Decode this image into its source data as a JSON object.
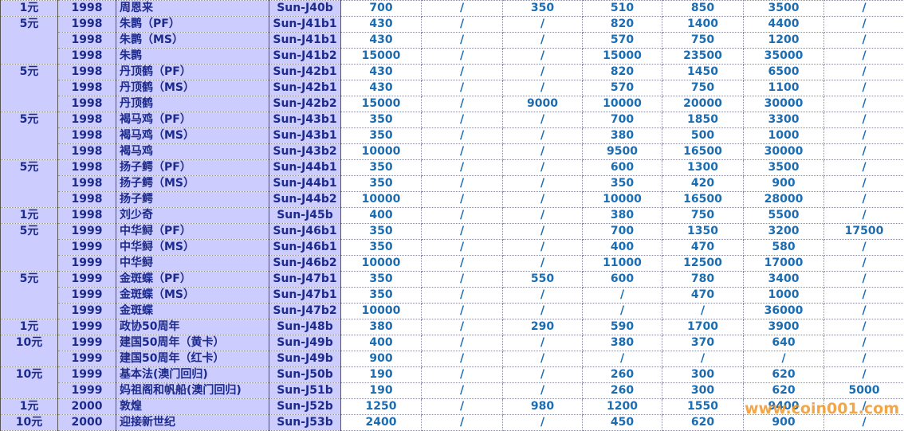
{
  "table": {
    "rows": [
      {
        "denomination": "1元",
        "year": "1998",
        "name": "周恩来",
        "code": "Sun-J40b",
        "prices": [
          700,
          "/",
          350,
          510,
          850,
          3500,
          "/"
        ]
      },
      {
        "denomination": "5元",
        "year": "1998",
        "name": "朱鹮（PF）",
        "code": "Sun-J41b1",
        "prices": [
          430,
          "/",
          "/",
          820,
          1400,
          4400,
          "/"
        ]
      },
      {
        "year": "1998",
        "name": "朱鹮（MS）",
        "code": "Sun-J41b1",
        "prices": [
          430,
          "/",
          "/",
          570,
          750,
          1200,
          "/"
        ]
      },
      {
        "year": "1998",
        "name": "朱鹮",
        "code": "Sun-J41b2",
        "prices": [
          15000,
          "/",
          "/",
          15000,
          23500,
          35000,
          "/"
        ]
      },
      {
        "denomination": "5元",
        "year": "1998",
        "name": "丹顶鹤（PF）",
        "code": "Sun-J42b1",
        "prices": [
          430,
          "/",
          "/",
          820,
          1450,
          6500,
          "/"
        ]
      },
      {
        "year": "1998",
        "name": "丹顶鹤（MS）",
        "code": "Sun-J42b1",
        "prices": [
          430,
          "/",
          "/",
          570,
          750,
          1100,
          "/"
        ]
      },
      {
        "year": "1998",
        "name": "丹顶鹤",
        "code": "Sun-J42b2",
        "prices": [
          15000,
          "/",
          9000,
          10000,
          20000,
          30000,
          "/"
        ]
      },
      {
        "denomination": "5元",
        "year": "1998",
        "name": "褐马鸡（PF）",
        "code": "Sun-J43b1",
        "prices": [
          350,
          "/",
          "/",
          700,
          1850,
          3300,
          "/"
        ]
      },
      {
        "year": "1998",
        "name": "褐马鸡（MS）",
        "code": "Sun-J43b1",
        "prices": [
          350,
          "/",
          "/",
          380,
          500,
          1000,
          "/"
        ]
      },
      {
        "year": "1998",
        "name": "褐马鸡",
        "code": "Sun-J43b2",
        "prices": [
          10000,
          "/",
          "/",
          9500,
          16500,
          30000,
          "/"
        ]
      },
      {
        "denomination": "5元",
        "year": "1998",
        "name": "扬子鳄（PF）",
        "code": "Sun-J44b1",
        "prices": [
          350,
          "/",
          "/",
          600,
          1300,
          3500,
          "/"
        ]
      },
      {
        "year": "1998",
        "name": "扬子鳄（MS）",
        "code": "Sun-J44b1",
        "prices": [
          350,
          "/",
          "/",
          350,
          420,
          900,
          "/"
        ]
      },
      {
        "year": "1998",
        "name": "扬子鳄",
        "code": "Sun-J44b2",
        "prices": [
          10000,
          "/",
          "/",
          10000,
          16500,
          28000,
          "/"
        ]
      },
      {
        "denomination": "1元",
        "year": "1998",
        "name": "刘少奇",
        "code": "Sun-J45b",
        "prices": [
          400,
          "/",
          "/",
          380,
          750,
          5500,
          "/"
        ]
      },
      {
        "denomination": "5元",
        "year": "1999",
        "name": "中华鲟（PF）",
        "code": "Sun-J46b1",
        "prices": [
          350,
          "/",
          "/",
          700,
          1350,
          3200,
          17500
        ]
      },
      {
        "year": "1999",
        "name": "中华鲟（MS）",
        "code": "Sun-J46b1",
        "prices": [
          350,
          "/",
          "/",
          400,
          470,
          580,
          "/"
        ]
      },
      {
        "year": "1999",
        "name": "中华鲟",
        "code": "Sun-J46b2",
        "prices": [
          10000,
          "/",
          "/",
          11000,
          12500,
          17000,
          "/"
        ]
      },
      {
        "denomination": "5元",
        "year": "1999",
        "name": "金斑蝶（PF）",
        "code": "Sun-J47b1",
        "prices": [
          350,
          "/",
          550,
          600,
          780,
          3400,
          "/"
        ]
      },
      {
        "year": "1999",
        "name": "金斑蝶（MS）",
        "code": "Sun-J47b1",
        "prices": [
          350,
          "/",
          "/",
          "/",
          470,
          1000,
          "/"
        ]
      },
      {
        "year": "1999",
        "name": "金斑蝶",
        "code": "Sun-J47b2",
        "prices": [
          10000,
          "/",
          "/",
          "/",
          "/",
          36000,
          "/"
        ]
      },
      {
        "denomination": "1元",
        "year": "1999",
        "name": "政协50周年",
        "code": "Sun-J48b",
        "prices": [
          380,
          "/",
          290,
          590,
          1700,
          3900,
          "/"
        ]
      },
      {
        "denomination": "10元",
        "year": "1999",
        "name": "建国50周年（黄卡）",
        "code": "Sun-J49b",
        "prices": [
          400,
          "/",
          "/",
          380,
          370,
          640,
          "/"
        ]
      },
      {
        "year": "1999",
        "name": "建国50周年（红卡）",
        "code": "Sun-J49b",
        "prices": [
          900,
          "/",
          "/",
          "/",
          "/",
          "/",
          "/"
        ]
      },
      {
        "denomination": "10元",
        "year": "1999",
        "name": "基本法(澳门回归)",
        "code": "Sun-J50b",
        "prices": [
          190,
          "/",
          "/",
          260,
          300,
          620,
          "/"
        ]
      },
      {
        "year": "1999",
        "name": "妈祖阁和帆船(澳门回归)",
        "code": "Sun-J51b",
        "prices": [
          190,
          "/",
          "/",
          260,
          300,
          620,
          5000
        ]
      },
      {
        "denomination": "1元",
        "year": "2000",
        "name": "敦煌",
        "code": "Sun-J52b",
        "prices": [
          1250,
          "/",
          980,
          1200,
          1550,
          9400,
          "/"
        ]
      },
      {
        "denomination": "10元",
        "year": "2000",
        "name": "迎接新世纪",
        "code": "Sun-J53b",
        "prices": [
          2400,
          "/",
          "/",
          450,
          620,
          900,
          "/"
        ]
      }
    ]
  },
  "watermark": "www.coin001.com"
}
